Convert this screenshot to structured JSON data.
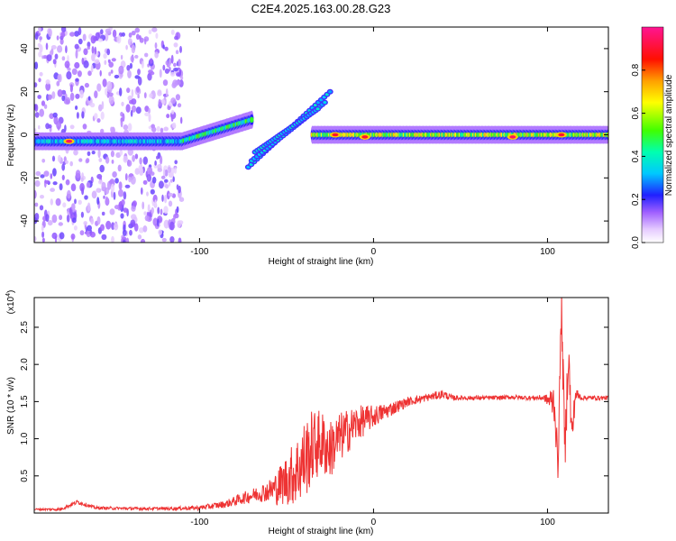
{
  "chart_data": [
    {
      "type": "heatmap",
      "title": "C2E4.2025.163.00.28.G23",
      "xlabel": "Height of straight line (km)",
      "ylabel": "Frequency (Hz)",
      "xlim": [
        -195,
        135
      ],
      "ylim": [
        -50,
        50
      ],
      "xticks": [
        -100,
        0,
        100
      ],
      "yticks": [
        -40,
        -20,
        0,
        20,
        40
      ],
      "colorbar": {
        "label": "Normalized spectral amplitude",
        "range": [
          0,
          1
        ],
        "ticks": [
          0.0,
          0.2,
          0.4,
          0.6,
          0.8
        ],
        "colors": [
          "#ffffff",
          "#d9b3ff",
          "#8a2be2",
          "#0000ff",
          "#00ffff",
          "#00ff00",
          "#ffff00",
          "#ffa500",
          "#ff0000",
          "#ff1493"
        ]
      },
      "main_band": {
        "segments": [
          {
            "x0": -195,
            "x1": -110,
            "freq": -3,
            "amplitude": 0.35
          },
          {
            "x0": -110,
            "x1": -70,
            "freq0": -3,
            "freq1": 7,
            "amplitude": 0.45
          },
          {
            "x0": -35,
            "x1": 135,
            "freq": 0,
            "amplitude": 0.6
          }
        ],
        "peaks": [
          {
            "x": -175,
            "freq": -3,
            "amplitude": 0.95
          },
          {
            "x": -22,
            "freq": 0,
            "amplitude": 0.9
          },
          {
            "x": -5,
            "freq": -1,
            "amplitude": 0.9
          },
          {
            "x": 80,
            "freq": -1,
            "amplitude": 0.95
          },
          {
            "x": 108,
            "freq": 0,
            "amplitude": 0.9
          }
        ]
      },
      "branching_tracks": [
        {
          "x0": -72,
          "f0": -15,
          "x1": -25,
          "f1": 20
        },
        {
          "x0": -70,
          "f0": -12,
          "x1": -28,
          "f1": 15
        },
        {
          "x0": -68,
          "f0": -8,
          "x1": -32,
          "f1": 12
        }
      ]
    },
    {
      "type": "line",
      "xlabel": "Height of straight line (km)",
      "ylabel": "SNR (10 * v/v)",
      "y_multiplier": "(x10",
      "y_multiplier_exp": "4",
      "y_multiplier_close": ")",
      "xlim": [
        -195,
        135
      ],
      "ylim": [
        0,
        2.9
      ],
      "xticks": [
        -100,
        0,
        100
      ],
      "yticks": [
        0.5,
        1.0,
        1.5,
        2.0,
        2.5
      ],
      "ytick_labels": [
        "0.5",
        "1.0",
        "1.5",
        "2.0",
        "2.5"
      ],
      "color": "#ee3333",
      "series": [
        {
          "name": "SNR",
          "x": [
            -195,
            -180,
            -170,
            -160,
            -140,
            -120,
            -100,
            -85,
            -75,
            -68,
            -60,
            -55,
            -50,
            -45,
            -40,
            -35,
            -30,
            -25,
            -20,
            -15,
            -10,
            -5,
            0,
            5,
            10,
            15,
            20,
            30,
            40,
            45,
            50,
            60,
            70,
            80,
            90,
            98,
            100,
            104,
            106,
            108,
            110,
            112,
            114,
            116,
            120,
            130,
            135
          ],
          "y": [
            0.05,
            0.05,
            0.15,
            0.07,
            0.06,
            0.06,
            0.07,
            0.12,
            0.2,
            0.25,
            0.3,
            0.35,
            0.45,
            0.55,
            0.7,
            0.9,
            0.95,
            0.85,
            1.0,
            1.1,
            1.2,
            1.25,
            1.3,
            1.35,
            1.4,
            1.45,
            1.5,
            1.55,
            1.6,
            1.55,
            1.55,
            1.55,
            1.55,
            1.56,
            1.55,
            1.55,
            1.52,
            1.5,
            0.6,
            2.8,
            0.8,
            2.2,
            1.0,
            1.6,
            1.55,
            1.55,
            1.55
          ],
          "noise_amplitude": [
            0.01,
            0.02,
            0.03,
            0.02,
            0.02,
            0.02,
            0.03,
            0.05,
            0.08,
            0.1,
            0.15,
            0.25,
            0.35,
            0.45,
            0.55,
            0.5,
            0.45,
            0.4,
            0.35,
            0.3,
            0.25,
            0.2,
            0.15,
            0.12,
            0.1,
            0.08,
            0.06,
            0.05,
            0.06,
            0.04,
            0.03,
            0.03,
            0.03,
            0.03,
            0.03,
            0.04,
            0.08,
            0.3,
            0.2,
            0.3,
            0.4,
            0.3,
            0.3,
            0.1,
            0.03,
            0.03,
            0.03
          ]
        }
      ]
    }
  ]
}
